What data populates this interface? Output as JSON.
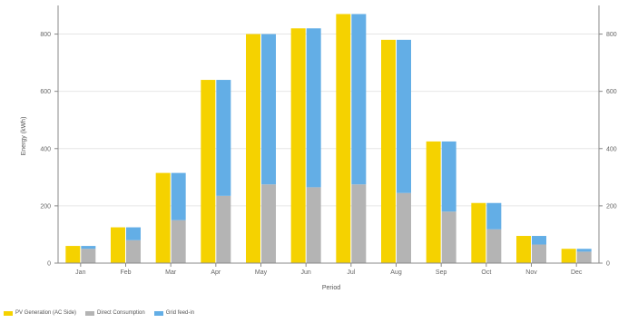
{
  "chart_data": {
    "type": "bar",
    "categories": [
      "Jan",
      "Feb",
      "Mar",
      "Apr",
      "May",
      "Jun",
      "Jul",
      "Aug",
      "Sep",
      "Oct",
      "Nov",
      "Dec"
    ],
    "series": [
      {
        "name": "PV Generation (AC Side)",
        "values": [
          60,
          125,
          315,
          640,
          800,
          820,
          870,
          780,
          425,
          210,
          95,
          50
        ],
        "color": "#f5d200"
      },
      {
        "name": "Direct Consumption",
        "values": [
          50,
          80,
          150,
          235,
          275,
          265,
          275,
          245,
          180,
          118,
          65,
          40
        ],
        "color": "#b4b4b4"
      },
      {
        "name": "Grid feed-in",
        "values": [
          10,
          45,
          165,
          405,
          525,
          555,
          595,
          535,
          245,
          92,
          30,
          10
        ],
        "color": "#63aee6"
      }
    ],
    "ylabel": "Energy (kWh)",
    "xlabel": "Period",
    "ylim": [
      0,
      900
    ],
    "yticks": [
      0,
      200,
      400,
      600,
      800
    ],
    "ytick_labels": [
      "0",
      "200",
      "400",
      "600",
      "800"
    ],
    "secondary_axis": true,
    "grid": true,
    "legend_position": "bottom-left"
  }
}
